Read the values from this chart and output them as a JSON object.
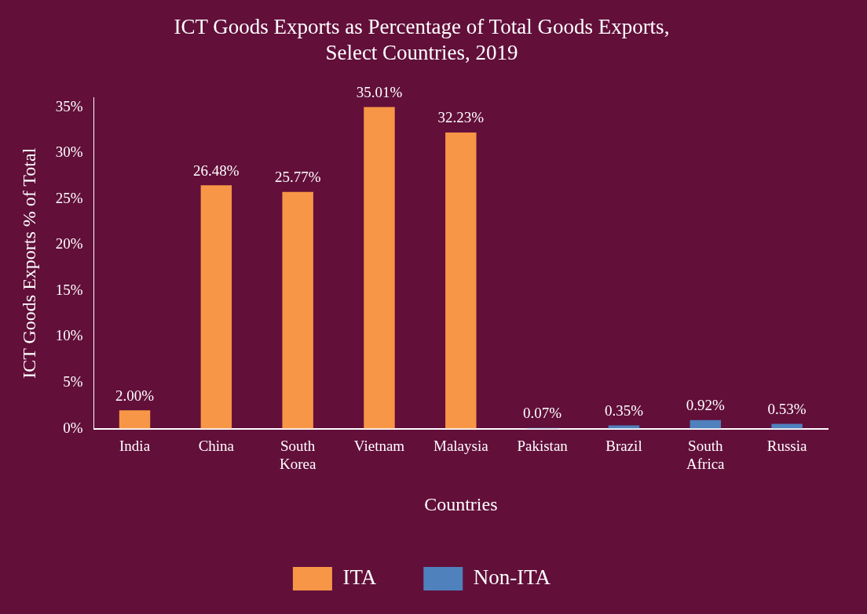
{
  "chart_data": {
    "type": "bar",
    "title": "ICT Goods Exports as Percentage of Total Goods Exports,\nSelect Countries, 2019",
    "xlabel": "Countries",
    "ylabel": "ICT Goods Exports % of Total",
    "categories": [
      "India",
      "China",
      "South Korea",
      "Vietnam",
      "Malaysia",
      "Pakistan",
      "Brazil",
      "South Africa",
      "Russia"
    ],
    "series": [
      {
        "name": "ITA",
        "color": "#f79646",
        "values": [
          2.0,
          26.48,
          25.77,
          35.01,
          32.23,
          null,
          null,
          null,
          null
        ],
        "value_labels": [
          "2.00%",
          "26.48%",
          "25.77%",
          "35.01%",
          "32.23%",
          null,
          null,
          null,
          null
        ]
      },
      {
        "name": "Non-ITA",
        "color": "#4f81bd",
        "values": [
          null,
          null,
          null,
          null,
          null,
          0.07,
          0.35,
          0.92,
          0.53
        ],
        "value_labels": [
          null,
          null,
          null,
          null,
          null,
          "0.07%",
          "0.35%",
          "0.92%",
          "0.53%"
        ]
      }
    ],
    "ylim": [
      0,
      36
    ],
    "yticks": [
      {
        "value": 0,
        "label": "0%"
      },
      {
        "value": 5,
        "label": "5%"
      },
      {
        "value": 10,
        "label": "10%"
      },
      {
        "value": 15,
        "label": "15%"
      },
      {
        "value": 20,
        "label": "20%"
      },
      {
        "value": 25,
        "label": "25%"
      },
      {
        "value": 30,
        "label": "30%"
      },
      {
        "value": 35,
        "label": "35%"
      }
    ],
    "grid": false,
    "legend": "bottom"
  }
}
